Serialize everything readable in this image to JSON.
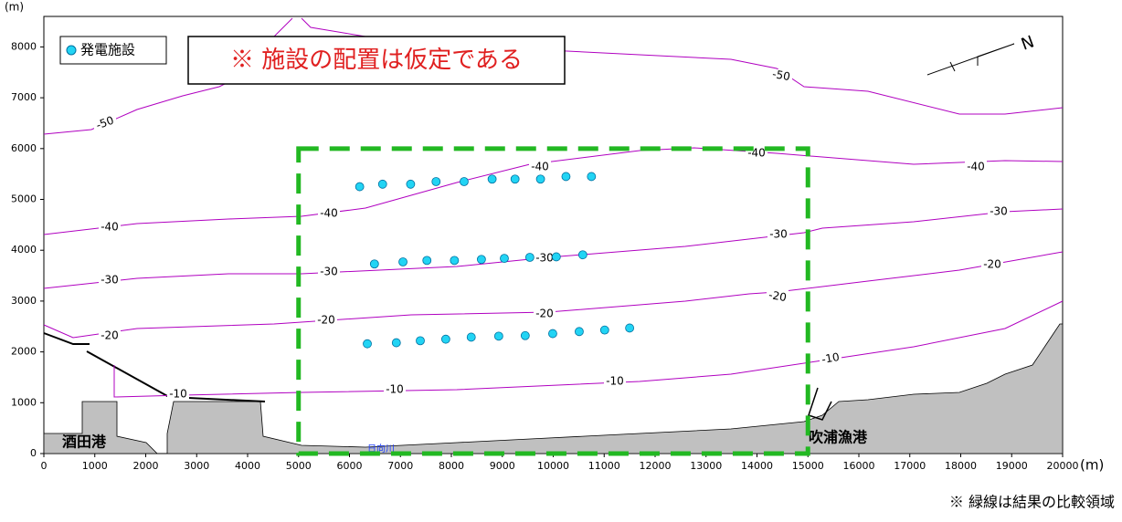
{
  "chart_data": {
    "type": "scatter",
    "x_unit": "(m)",
    "y_unit": "(m)",
    "xlim": [
      0,
      20000
    ],
    "ylim": [
      0,
      8600
    ],
    "xticks": [
      0,
      1000,
      2000,
      3000,
      4000,
      5000,
      6000,
      7000,
      8000,
      9000,
      10000,
      11000,
      12000,
      13000,
      14000,
      15000,
      16000,
      17000,
      18000,
      19000,
      20000
    ],
    "yticks": [
      0,
      1000,
      2000,
      3000,
      4000,
      5000,
      6000,
      7000,
      8000
    ],
    "series": [
      {
        "name": "発電施設",
        "color": "#22d4f4",
        "x": [
          6200,
          6650,
          7200,
          7700,
          8250,
          8800,
          9250,
          9750,
          10250,
          10750,
          6490,
          7050,
          7520,
          8060,
          8590,
          9040,
          9540,
          10060,
          10580,
          6350,
          6920,
          7390,
          7890,
          8390,
          8930,
          9450,
          9990,
          10510,
          11010,
          11500
        ],
        "values": [
          5250,
          5300,
          5300,
          5350,
          5350,
          5400,
          5400,
          5400,
          5450,
          5450,
          3730,
          3770,
          3800,
          3800,
          3820,
          3840,
          3860,
          3870,
          3910,
          2160,
          2180,
          2220,
          2250,
          2290,
          2310,
          2320,
          2360,
          2400,
          2430,
          2470
        ]
      }
    ],
    "comparison_region": {
      "x": [
        5000,
        15000
      ],
      "y": [
        0,
        6000
      ],
      "color": "#22b822"
    },
    "contour_labels": [
      "-50",
      "-50",
      "-40",
      "-40",
      "-40",
      "-40",
      "-40",
      "-30",
      "-30",
      "-30",
      "-30",
      "-30",
      "-20",
      "-20",
      "-20",
      "-20",
      "-20",
      "-10",
      "-10",
      "-10",
      "-10"
    ]
  },
  "notice": "※ 施設の配置は仮定である",
  "north_label": "N",
  "places": [
    "酒田港",
    "吹浦漁港",
    "日向川"
  ],
  "footnote": "※ 緑線は結果の比較領域"
}
